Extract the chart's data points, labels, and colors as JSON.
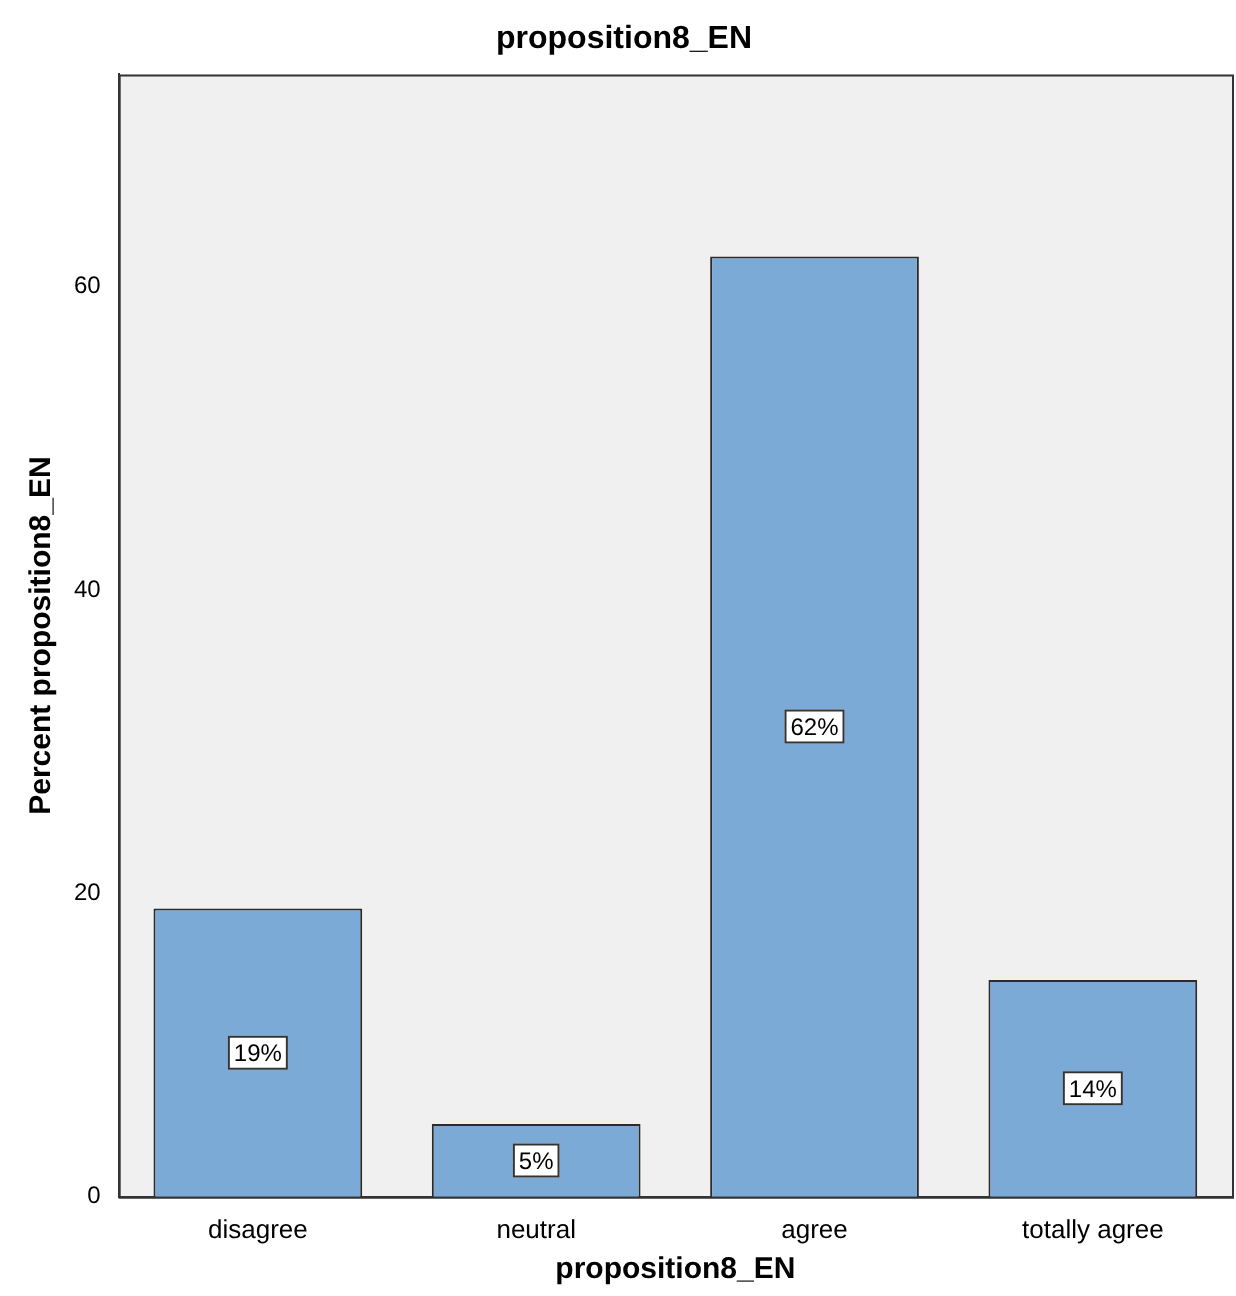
{
  "chart_data": {
    "type": "bar",
    "title": "proposition8_EN",
    "xlabel": "proposition8_EN",
    "ylabel": "Percent proposition8_EN",
    "categories": [
      "disagree",
      "neutral",
      "agree",
      "totally agree"
    ],
    "values": [
      19,
      4.8,
      62,
      14.3
    ],
    "value_labels": [
      "19%",
      "5%",
      "62%",
      "14%"
    ],
    "color": "#7baad6",
    "ylim": [
      0,
      74
    ],
    "yticks": [
      0,
      20,
      40,
      60
    ],
    "grid": false,
    "legend": false
  }
}
